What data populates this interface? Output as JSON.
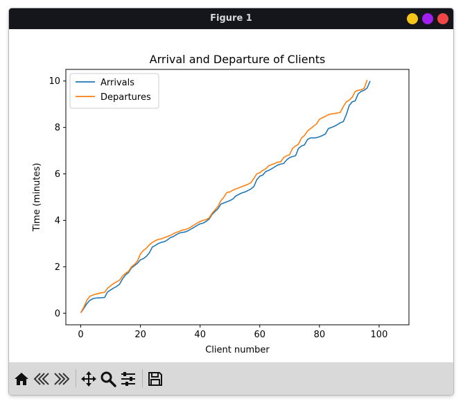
{
  "window": {
    "title": "Figure 1",
    "buttons": [
      {
        "name": "minimize-button",
        "color": "#f5c518"
      },
      {
        "name": "maximize-button",
        "color": "#a020f0"
      },
      {
        "name": "close-button",
        "color": "#f04646"
      }
    ]
  },
  "toolbar": {
    "items": [
      {
        "name": "home-button",
        "icon": "home-icon"
      },
      {
        "name": "back-button",
        "icon": "back-arrow-icon"
      },
      {
        "name": "forward-button",
        "icon": "forward-arrow-icon"
      },
      {
        "name": "pan-button",
        "icon": "move-icon"
      },
      {
        "name": "zoom-button",
        "icon": "magnifier-icon"
      },
      {
        "name": "configure-subplots-button",
        "icon": "sliders-icon"
      },
      {
        "name": "save-button",
        "icon": "floppy-disk-icon"
      }
    ]
  },
  "chart_data": {
    "type": "line",
    "title": "Arrival and Departure of Clients",
    "xlabel": "Client number",
    "ylabel": "Time (minutes)",
    "xlim": [
      -5,
      110
    ],
    "ylim": [
      -0.5,
      10.5
    ],
    "xticks": [
      0,
      20,
      40,
      60,
      80,
      100
    ],
    "yticks": [
      0,
      2,
      4,
      6,
      8,
      10
    ],
    "legend_position": "upper-left",
    "grid": false,
    "series": [
      {
        "name": "Arrivals",
        "color": "#1f77b4",
        "points": [
          [
            0,
            0.02
          ],
          [
            1,
            0.2
          ],
          [
            2,
            0.4
          ],
          [
            3,
            0.55
          ],
          [
            4,
            0.62
          ],
          [
            5,
            0.65
          ],
          [
            6,
            0.66
          ],
          [
            7,
            0.67
          ],
          [
            8,
            0.68
          ],
          [
            9,
            0.92
          ],
          [
            10,
            1.0
          ],
          [
            11,
            1.08
          ],
          [
            12,
            1.15
          ],
          [
            13,
            1.25
          ],
          [
            14,
            1.48
          ],
          [
            15,
            1.65
          ],
          [
            16,
            1.75
          ],
          [
            17,
            1.95
          ],
          [
            18,
            2.05
          ],
          [
            19,
            2.15
          ],
          [
            20,
            2.3
          ],
          [
            21,
            2.35
          ],
          [
            22,
            2.45
          ],
          [
            23,
            2.6
          ],
          [
            24,
            2.85
          ],
          [
            25,
            2.92
          ],
          [
            26,
            3.0
          ],
          [
            27,
            3.05
          ],
          [
            28,
            3.08
          ],
          [
            29,
            3.15
          ],
          [
            30,
            3.25
          ],
          [
            31,
            3.3
          ],
          [
            32,
            3.38
          ],
          [
            33,
            3.45
          ],
          [
            34,
            3.48
          ],
          [
            35,
            3.5
          ],
          [
            36,
            3.55
          ],
          [
            37,
            3.63
          ],
          [
            38,
            3.7
          ],
          [
            39,
            3.78
          ],
          [
            40,
            3.85
          ],
          [
            41,
            3.88
          ],
          [
            42,
            3.95
          ],
          [
            43,
            4.05
          ],
          [
            44,
            4.25
          ],
          [
            45,
            4.38
          ],
          [
            46,
            4.5
          ],
          [
            47,
            4.7
          ],
          [
            48,
            4.75
          ],
          [
            49,
            4.8
          ],
          [
            50,
            4.85
          ],
          [
            51,
            4.92
          ],
          [
            52,
            5.05
          ],
          [
            53,
            5.12
          ],
          [
            54,
            5.18
          ],
          [
            55,
            5.22
          ],
          [
            56,
            5.28
          ],
          [
            57,
            5.35
          ],
          [
            58,
            5.45
          ],
          [
            59,
            5.75
          ],
          [
            60,
            5.9
          ],
          [
            61,
            5.95
          ],
          [
            62,
            6.1
          ],
          [
            63,
            6.15
          ],
          [
            64,
            6.22
          ],
          [
            65,
            6.3
          ],
          [
            66,
            6.38
          ],
          [
            67,
            6.42
          ],
          [
            68,
            6.45
          ],
          [
            69,
            6.6
          ],
          [
            70,
            6.7
          ],
          [
            71,
            6.75
          ],
          [
            72,
            6.78
          ],
          [
            73,
            7.1
          ],
          [
            74,
            7.2
          ],
          [
            75,
            7.25
          ],
          [
            76,
            7.48
          ],
          [
            77,
            7.55
          ],
          [
            78,
            7.55
          ],
          [
            79,
            7.56
          ],
          [
            80,
            7.6
          ],
          [
            81,
            7.65
          ],
          [
            82,
            7.72
          ],
          [
            83,
            7.95
          ],
          [
            84,
            8.0
          ],
          [
            85,
            8.05
          ],
          [
            86,
            8.12
          ],
          [
            87,
            8.2
          ],
          [
            88,
            8.25
          ],
          [
            89,
            8.55
          ],
          [
            90,
            8.95
          ],
          [
            91,
            9.1
          ],
          [
            92,
            9.15
          ],
          [
            93,
            9.45
          ],
          [
            94,
            9.55
          ],
          [
            95,
            9.6
          ],
          [
            96,
            9.7
          ],
          [
            97,
            10.0
          ]
        ]
      },
      {
        "name": "Departures",
        "color": "#ff7f0e",
        "points": [
          [
            0,
            0.02
          ],
          [
            1,
            0.25
          ],
          [
            2,
            0.55
          ],
          [
            3,
            0.72
          ],
          [
            4,
            0.78
          ],
          [
            5,
            0.82
          ],
          [
            6,
            0.85
          ],
          [
            7,
            0.88
          ],
          [
            8,
            0.9
          ],
          [
            9,
            1.08
          ],
          [
            10,
            1.18
          ],
          [
            11,
            1.28
          ],
          [
            12,
            1.35
          ],
          [
            13,
            1.42
          ],
          [
            14,
            1.6
          ],
          [
            15,
            1.72
          ],
          [
            16,
            1.8
          ],
          [
            17,
            2.0
          ],
          [
            18,
            2.1
          ],
          [
            19,
            2.25
          ],
          [
            20,
            2.55
          ],
          [
            21,
            2.7
          ],
          [
            22,
            2.8
          ],
          [
            23,
            2.95
          ],
          [
            24,
            3.05
          ],
          [
            25,
            3.12
          ],
          [
            26,
            3.18
          ],
          [
            27,
            3.2
          ],
          [
            28,
            3.25
          ],
          [
            29,
            3.3
          ],
          [
            30,
            3.35
          ],
          [
            31,
            3.42
          ],
          [
            32,
            3.48
          ],
          [
            33,
            3.52
          ],
          [
            34,
            3.58
          ],
          [
            35,
            3.6
          ],
          [
            36,
            3.65
          ],
          [
            37,
            3.72
          ],
          [
            38,
            3.8
          ],
          [
            39,
            3.88
          ],
          [
            40,
            3.95
          ],
          [
            41,
            4.0
          ],
          [
            42,
            4.03
          ],
          [
            43,
            4.1
          ],
          [
            44,
            4.3
          ],
          [
            45,
            4.45
          ],
          [
            46,
            4.6
          ],
          [
            47,
            4.85
          ],
          [
            48,
            5.0
          ],
          [
            49,
            5.2
          ],
          [
            50,
            5.22
          ],
          [
            51,
            5.3
          ],
          [
            52,
            5.35
          ],
          [
            53,
            5.4
          ],
          [
            54,
            5.45
          ],
          [
            55,
            5.5
          ],
          [
            56,
            5.55
          ],
          [
            57,
            5.62
          ],
          [
            58,
            5.8
          ],
          [
            59,
            6.0
          ],
          [
            60,
            6.05
          ],
          [
            61,
            6.15
          ],
          [
            62,
            6.22
          ],
          [
            63,
            6.35
          ],
          [
            64,
            6.4
          ],
          [
            65,
            6.45
          ],
          [
            66,
            6.5
          ],
          [
            67,
            6.52
          ],
          [
            68,
            6.7
          ],
          [
            69,
            6.78
          ],
          [
            70,
            6.82
          ],
          [
            71,
            7.1
          ],
          [
            72,
            7.2
          ],
          [
            73,
            7.28
          ],
          [
            74,
            7.55
          ],
          [
            75,
            7.65
          ],
          [
            76,
            7.85
          ],
          [
            77,
            7.95
          ],
          [
            78,
            8.05
          ],
          [
            79,
            8.15
          ],
          [
            80,
            8.35
          ],
          [
            81,
            8.42
          ],
          [
            82,
            8.48
          ],
          [
            83,
            8.55
          ],
          [
            84,
            8.58
          ],
          [
            85,
            8.6
          ],
          [
            86,
            8.62
          ],
          [
            87,
            8.65
          ],
          [
            88,
            8.9
          ],
          [
            89,
            9.1
          ],
          [
            90,
            9.18
          ],
          [
            91,
            9.3
          ],
          [
            92,
            9.55
          ],
          [
            93,
            9.6
          ],
          [
            94,
            9.62
          ],
          [
            95,
            9.68
          ],
          [
            96,
            10.05
          ]
        ]
      }
    ]
  }
}
